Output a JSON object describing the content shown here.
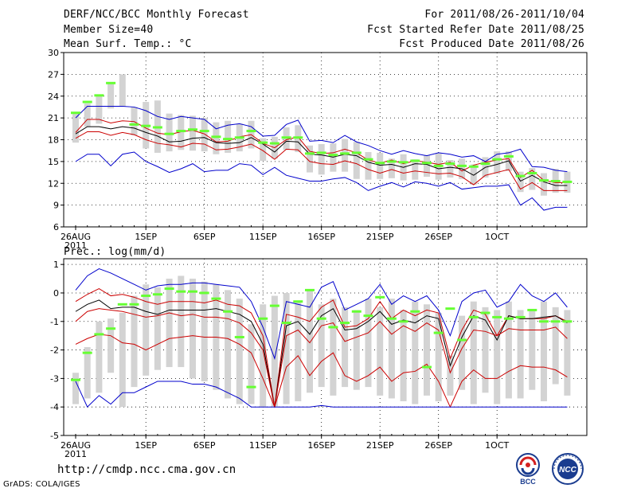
{
  "header": {
    "title": "DERF/NCC/BCC Monthly Forecast",
    "member_size": "Member Size=40",
    "variable": "Mean Surf. Temp.: °C",
    "period": "For 2011/08/26-2011/10/04",
    "started": "Fcst Started Refer Date 2011/08/25",
    "produced": "Fcst Produced Date 2011/08/26"
  },
  "footer": {
    "url": "http://cmdp.ncc.cma.gov.cn",
    "grads": "GrADS: COLA/IGES",
    "logo1_text": "BCC",
    "logo2_text": "NCC"
  },
  "colors": {
    "mean_line": "#000000",
    "spread_line": "#cc0000",
    "envelope_line": "#0000cc",
    "box": "#d3d3d3",
    "observed": "#66ff33",
    "grid": "#000000"
  },
  "chart_data": [
    {
      "type": "line",
      "title": "Mean Surf. Temp.: °C",
      "ylim": [
        6,
        30
      ],
      "yticks": [
        6,
        9,
        12,
        15,
        18,
        21,
        24,
        27,
        30
      ],
      "xlabels": [
        {
          "day": 0,
          "label": "26AUG",
          "sub": "2011"
        },
        {
          "day": 6,
          "label": "1SEP"
        },
        {
          "day": 11,
          "label": "6SEP"
        },
        {
          "day": 16,
          "label": "11SEP"
        },
        {
          "day": 21,
          "label": "16SEP"
        },
        {
          "day": 26,
          "label": "21SEP"
        },
        {
          "day": 31,
          "label": "26SEP"
        },
        {
          "day": 36,
          "label": "1OCT"
        }
      ],
      "series": [
        {
          "name": "max",
          "values": [
            21,
            22.6,
            22.6,
            22.6,
            22.6,
            22.5,
            22,
            21.2,
            20.8,
            21.2,
            21,
            20.8,
            19.5,
            20,
            20.2,
            19.8,
            18.5,
            18.6,
            20.1,
            20.7,
            17.8,
            17.9,
            17.6,
            18.6,
            17.7,
            17.2,
            16.5,
            16,
            16.5,
            16.1,
            15.8,
            16.2,
            16,
            15.6,
            15.8,
            15,
            16,
            16.2,
            16.7,
            14.3,
            14.2,
            13.8,
            13.6
          ]
        },
        {
          "name": "upper",
          "values": [
            19,
            20.8,
            20.8,
            20.3,
            20.6,
            20.5,
            19.6,
            18.9,
            18.7,
            19.1,
            19.3,
            18.8,
            17.7,
            17.8,
            18.4,
            18.7,
            17.5,
            16.9,
            18,
            18.4,
            16.4,
            16.1,
            16.2,
            16.7,
            16.2,
            15.2,
            14.8,
            15.2,
            14.7,
            15.1,
            14.9,
            14.6,
            14.9,
            13.7,
            14.5,
            14.9,
            15.2,
            15.4,
            12.8,
            13.8,
            12.4,
            12.1,
            12.1
          ]
        },
        {
          "name": "mean",
          "values": [
            18.8,
            19.8,
            19.8,
            19.5,
            19.8,
            19.6,
            19,
            18.5,
            17.7,
            17.8,
            18.2,
            18.3,
            17.6,
            17.5,
            17.6,
            18.3,
            17.4,
            16.3,
            17.8,
            17.7,
            16,
            15.9,
            15.6,
            16,
            15.8,
            14.9,
            14.5,
            14.6,
            14.2,
            14.7,
            14.6,
            14,
            14.2,
            14,
            13.1,
            14.2,
            14.6,
            15.1,
            12.3,
            13.1,
            12.2,
            11.7,
            11.7
          ]
        },
        {
          "name": "lower",
          "values": [
            18.2,
            19.1,
            19.1,
            18.6,
            19,
            18.7,
            18,
            17.5,
            17.3,
            17,
            17.5,
            17.4,
            16.6,
            16.7,
            17,
            17.4,
            16.5,
            15.3,
            16.7,
            16.6,
            15,
            14.7,
            14.6,
            15.1,
            14.7,
            13.9,
            13.4,
            13.9,
            13.4,
            13.7,
            13.5,
            13.3,
            13.4,
            12.9,
            11.8,
            13.1,
            13.5,
            13.9,
            11.2,
            12.1,
            11,
            11,
            11
          ]
        },
        {
          "name": "min",
          "values": [
            15,
            16,
            16,
            14.4,
            16,
            16.3,
            15,
            14.3,
            13.5,
            14,
            14.7,
            13.6,
            13.8,
            13.8,
            14.7,
            14.5,
            13.2,
            14.2,
            13.1,
            12.7,
            12.3,
            12.3,
            12.6,
            12.8,
            12.1,
            11,
            11.6,
            12.1,
            11.5,
            12.2,
            12,
            11.6,
            12.1,
            11.2,
            11.4,
            11.6,
            11.6,
            11.8,
            9,
            10,
            8.3,
            8.7,
            8.7
          ]
        },
        {
          "name": "observed",
          "values": [
            21.7,
            23.2,
            24.1,
            25.8,
            null,
            20.1,
            19.9,
            19.7,
            18.8,
            19.2,
            19.4,
            19.2,
            18.4,
            18.1,
            18.3,
            19.2,
            17.6,
            17.5,
            18.3,
            18.3,
            16.1,
            16.2,
            15.9,
            16.1,
            16.2,
            15.3,
            14.8,
            15,
            14.9,
            15.1,
            14.8,
            14.4,
            14.7,
            14.4,
            14.3,
            14.7,
            15.3,
            15.7,
            13,
            13.4,
            12.4,
            12.3,
            12.2
          ]
        }
      ],
      "boxes": [
        [
          17.6,
          21.6
        ],
        [
          19.8,
          23
        ],
        [
          20.2,
          24.2
        ],
        [
          22.3,
          25.8
        ],
        [
          22.6,
          27
        ],
        [
          18.6,
          22.5
        ],
        [
          16.8,
          23.2
        ],
        [
          16.2,
          23.4
        ],
        [
          16.4,
          21.6
        ],
        [
          16.6,
          21.4
        ],
        [
          16.5,
          21.3
        ],
        [
          16.4,
          21
        ],
        [
          16,
          20.4
        ],
        [
          16.2,
          20.6
        ],
        [
          16.4,
          20.2
        ],
        [
          16.8,
          20.6
        ],
        [
          15.1,
          18.2
        ],
        [
          15.4,
          18.4
        ],
        [
          16.6,
          19.7
        ],
        [
          16.3,
          20
        ],
        [
          13.5,
          17.2
        ],
        [
          13.2,
          17.4
        ],
        [
          13.6,
          17.5
        ],
        [
          13.6,
          18.1
        ],
        [
          12.6,
          17.7
        ],
        [
          12.5,
          16.3
        ],
        [
          12.6,
          16.2
        ],
        [
          12.7,
          15.4
        ],
        [
          12.4,
          16
        ],
        [
          12.5,
          15.3
        ],
        [
          12.9,
          15.9
        ],
        [
          12.5,
          16.1
        ],
        [
          12.8,
          15.2
        ],
        [
          12.6,
          15.4
        ],
        [
          11.8,
          14.6
        ],
        [
          12.8,
          15.6
        ],
        [
          13.3,
          16.4
        ],
        [
          13.7,
          16.4
        ],
        [
          10.8,
          13.6
        ],
        [
          11.1,
          14.1
        ],
        [
          10.3,
          13.4
        ],
        [
          10.7,
          14
        ],
        [
          10.7,
          13.6
        ]
      ]
    },
    {
      "type": "line",
      "title": "Prec.: log(mm/d)",
      "ylim": [
        -5,
        1.2
      ],
      "yticks": [
        -5,
        -4,
        -3,
        -2,
        -1,
        0,
        1
      ],
      "xlabels": [
        {
          "day": 0,
          "label": "26AUG",
          "sub": "2011"
        },
        {
          "day": 6,
          "label": "1SEP"
        },
        {
          "day": 11,
          "label": "6SEP"
        },
        {
          "day": 16,
          "label": "11SEP"
        },
        {
          "day": 21,
          "label": "16SEP"
        },
        {
          "day": 26,
          "label": "21SEP"
        },
        {
          "day": 31,
          "label": "26SEP"
        },
        {
          "day": 36,
          "label": "1OCT"
        }
      ],
      "series": [
        {
          "name": "max",
          "values": [
            0.1,
            0.6,
            0.85,
            0.7,
            0.5,
            0.3,
            0.1,
            0.25,
            0.3,
            0.3,
            0.35,
            0.35,
            0.3,
            0.25,
            0.2,
            -0.3,
            -1.2,
            -2.3,
            -0.3,
            -0.4,
            -0.5,
            0.2,
            0.4,
            -0.6,
            -0.4,
            -0.2,
            0.3,
            -0.4,
            -0.1,
            -0.3,
            -0.1,
            -0.6,
            -1.5,
            -0.3,
            0,
            0.1,
            -0.5,
            -0.3,
            0.3,
            -0.1,
            -0.3,
            0,
            -0.5
          ]
        },
        {
          "name": "upper",
          "values": [
            -0.3,
            -0.05,
            0.15,
            -0.1,
            -0.05,
            -0.15,
            -0.3,
            -0.4,
            -0.3,
            -0.3,
            -0.3,
            -0.35,
            -0.25,
            -0.4,
            -0.45,
            -0.7,
            -1.5,
            -4.0,
            -0.75,
            -0.85,
            -1.0,
            -0.5,
            -0.25,
            -1.2,
            -1.15,
            -0.9,
            -0.3,
            -0.9,
            -0.6,
            -0.8,
            -0.6,
            -0.7,
            -2.3,
            -1.3,
            -0.6,
            -0.75,
            -1.5,
            -0.8,
            -0.9,
            -0.9,
            -0.9,
            -0.8,
            -1.0
          ]
        },
        {
          "name": "mean",
          "values": [
            -0.65,
            -0.4,
            -0.25,
            -0.55,
            -0.5,
            -0.5,
            -0.65,
            -0.75,
            -0.6,
            -0.6,
            -0.6,
            -0.6,
            -0.55,
            -0.65,
            -0.75,
            -1.0,
            -1.8,
            -4.0,
            -1.15,
            -1.0,
            -1.45,
            -0.8,
            -0.55,
            -1.3,
            -1.25,
            -1.0,
            -0.65,
            -1.1,
            -0.95,
            -1.05,
            -0.8,
            -0.9,
            -2.55,
            -1.55,
            -0.8,
            -0.95,
            -1.65,
            -0.8,
            -0.9,
            -0.9,
            -0.85,
            -0.8,
            -1.05
          ]
        },
        {
          "name": "lower",
          "values": [
            -1.0,
            -0.65,
            -0.55,
            -0.6,
            -0.65,
            -0.75,
            -0.85,
            -0.8,
            -0.7,
            -0.8,
            -0.75,
            -0.85,
            -0.85,
            -0.9,
            -1.05,
            -1.4,
            -2.0,
            -4.0,
            -1.5,
            -1.3,
            -1.75,
            -1.15,
            -1.05,
            -1.7,
            -1.55,
            -1.4,
            -1.0,
            -1.45,
            -1.15,
            -1.35,
            -1.05,
            -1.3,
            -2.8,
            -1.95,
            -1.3,
            -1.35,
            -1.5,
            -1.25,
            -1.3,
            -1.3,
            -1.3,
            -1.2,
            -1.6
          ]
        },
        {
          "name": "lower2",
          "values": [
            -1.8,
            -1.6,
            -1.45,
            -1.5,
            -1.75,
            -1.8,
            -2.0,
            -1.8,
            -1.6,
            -1.55,
            -1.5,
            -1.55,
            -1.55,
            -1.6,
            -1.8,
            -2.1,
            -3.0,
            -4.0,
            -2.6,
            -2.2,
            -2.9,
            -2.4,
            -2.1,
            -2.9,
            -3.1,
            -2.9,
            -2.6,
            -3.1,
            -2.8,
            -2.75,
            -2.5,
            -3.1,
            -4.0,
            -3.1,
            -2.7,
            -3.0,
            -3.0,
            -2.75,
            -2.55,
            -2.6,
            -2.6,
            -2.7,
            -2.95
          ]
        },
        {
          "name": "min",
          "values": [
            -3.1,
            -4.0,
            -3.6,
            -3.9,
            -3.5,
            -3.5,
            -3.3,
            -3.1,
            -3.1,
            -3.1,
            -3.2,
            -3.2,
            -3.3,
            -3.5,
            -3.7,
            -4.0,
            -4.0,
            -4.0,
            -4.0,
            -4.0,
            -4.0,
            -3.95,
            -4.0,
            -4.0,
            -4.0,
            -4.0,
            -4.0,
            -4.0,
            -4.0,
            -4.0,
            -4.0,
            -4.0,
            -4.0,
            -4.0,
            -4.0,
            -4.0,
            -4.0,
            -4.0,
            -4.0,
            -4.0,
            -4.0,
            -4.0,
            -4.0
          ]
        },
        {
          "name": "observed",
          "values": [
            -3.05,
            -2.1,
            -1.45,
            -1.25,
            -0.4,
            -0.4,
            -0.1,
            -0.05,
            0.15,
            0.05,
            0.05,
            0,
            -0.2,
            -0.65,
            -1.55,
            -3.3,
            -0.9,
            -0.45,
            -1.05,
            -0.3,
            0.1,
            -0.9,
            -1.2,
            -1.05,
            -0.65,
            -0.8,
            -0.15,
            -0.9,
            -1.0,
            -0.65,
            -2.6,
            -1.4,
            -0.55,
            -1.65,
            -0.85,
            -0.7,
            -0.85,
            -0.9,
            -0.85,
            -0.6,
            -1.0,
            -1.0,
            -1.0
          ]
        }
      ],
      "boxes": [
        [
          -3.9,
          -2.8
        ],
        [
          -3.7,
          -1.9
        ],
        [
          -3.5,
          -1.0
        ],
        [
          -2.8,
          -0.9
        ],
        [
          -4.0,
          -0.7
        ],
        [
          -3.3,
          -0.1
        ],
        [
          -2.9,
          0.3
        ],
        [
          -2.7,
          0.2
        ],
        [
          -2.6,
          0.5
        ],
        [
          -2.6,
          0.6
        ],
        [
          -3.0,
          0.5
        ],
        [
          -3.1,
          0.4
        ],
        [
          -3.4,
          0.3
        ],
        [
          -3.7,
          0.1
        ],
        [
          -3.9,
          -0.2
        ],
        [
          -3.9,
          -1.1
        ],
        [
          -4.0,
          -0.4
        ],
        [
          -4.0,
          -0.1
        ],
        [
          -3.9,
          0.0
        ],
        [
          -3.8,
          -0.3
        ],
        [
          -3.5,
          0.1
        ],
        [
          -3.3,
          -0.4
        ],
        [
          -3.6,
          -0.2
        ],
        [
          -3.3,
          -0.5
        ],
        [
          -3.4,
          -0.6
        ],
        [
          -3.3,
          -0.2
        ],
        [
          -3.6,
          -0.5
        ],
        [
          -3.7,
          -0.2
        ],
        [
          -3.8,
          -0.6
        ],
        [
          -3.9,
          -0.3
        ],
        [
          -3.6,
          -0.4
        ],
        [
          -3.8,
          -0.7
        ],
        [
          -3.6,
          -2.2
        ],
        [
          -3.4,
          -0.8
        ],
        [
          -3.9,
          -0.3
        ],
        [
          -3.5,
          -0.5
        ],
        [
          -3.9,
          -0.6
        ],
        [
          -3.7,
          -0.3
        ],
        [
          -3.7,
          -0.6
        ],
        [
          -3.4,
          -0.6
        ],
        [
          -3.8,
          -0.3
        ],
        [
          -3.2,
          -0.5
        ],
        [
          -3.6,
          -0.6
        ]
      ]
    }
  ]
}
